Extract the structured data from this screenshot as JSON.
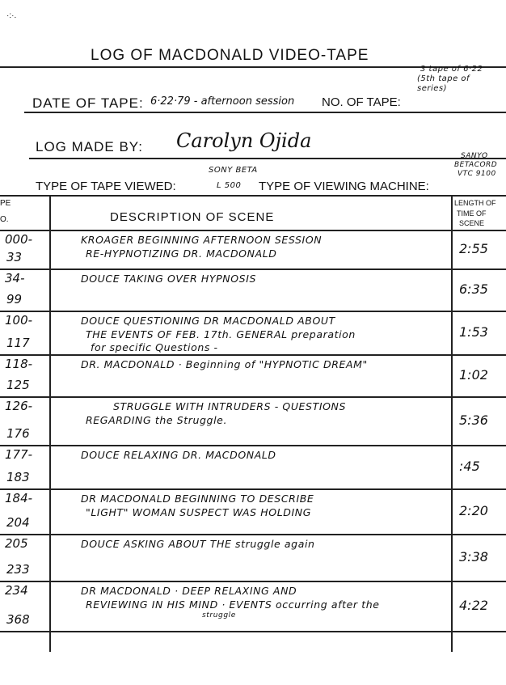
{
  "title": "LOG OF MACDONALD VIDEO-TAPE",
  "date_label": "DATE OF TAPE:",
  "date_value": "6·22·79 - afternoon session",
  "tape_no_label": "NO. OF TAPE:",
  "tape_no_value_line1": "3 tape of 6·22",
  "tape_no_value_line2": "(5th tape of",
  "tape_no_value_line3": "series)",
  "log_by_label": "LOG MADE BY:",
  "log_by_value": "Carolyn Ojida",
  "tape_type_label": "TYPE OF TAPE VIEWED:",
  "tape_type_value_line1": "SONY BETA",
  "tape_type_value_line2": "L 500",
  "machine_label": "TYPE OF VIEWING MACHINE:",
  "machine_value_line1": "SANYO",
  "machine_value_line2": "BETACORD",
  "machine_value_line3": "VTC 9100",
  "table": {
    "col_tape_no_line1": "PE",
    "col_tape_no_line2": "O.",
    "col_description": "DESCRIPTION OF SCENE",
    "col_length_line1": "LENGTH OF",
    "col_length_line2": "TIME OF",
    "col_length_line3": "SCENE",
    "rows": [
      {
        "start": "000-",
        "end": "33",
        "desc1": "KROAGER BEGINNING AFTERNOON SESSION",
        "desc2": "RE-HYPNOTIZING DR. MACDONALD",
        "desc3": "",
        "length": "2:55"
      },
      {
        "start": "34-",
        "end": "99",
        "desc1": "DOUCE TAKING OVER HYPNOSIS",
        "desc2": "",
        "desc3": "",
        "length": "6:35"
      },
      {
        "start": "100-",
        "end": "117",
        "desc1": "DOUCE QUESTIONING DR MACDONALD ABOUT",
        "desc2": "THE EVENTS OF FEB. 17th. GENERAL preparation",
        "desc3": "for specific Questions -",
        "length": "1:53"
      },
      {
        "start": "118-",
        "end": "125",
        "desc1": "DR. MACDONALD · Beginning of \"HYPNOTIC DREAM\"",
        "desc2": "",
        "desc3": "",
        "length": "1:02"
      },
      {
        "start": "126-",
        "end": "176",
        "desc1": "STRUGGLE WITH INTRUDERS - QUESTIONS",
        "desc2": "REGARDING the Struggle.",
        "desc3": "",
        "length": "5:36"
      },
      {
        "start": "177-",
        "end": "183",
        "desc1": "DOUCE RELAXING DR. MACDONALD",
        "desc2": "",
        "desc3": "",
        "length": ":45"
      },
      {
        "start": "184-",
        "end": "204",
        "desc1": "DR MACDONALD BEGINNING TO DESCRIBE",
        "desc2": "\"LIGHT\" WOMAN SUSPECT WAS HOLDING",
        "desc3": "",
        "length": "2:20"
      },
      {
        "start": "205",
        "end": "233",
        "desc1": "DOUCE ASKING ABOUT THE struggle again",
        "desc2": "",
        "desc3": "",
        "length": "3:38"
      },
      {
        "start": "234",
        "end": "368",
        "desc1": "DR MACDONALD · DEEP RELAXING AND",
        "desc2": "REVIEWING IN HIS MIND · EVENTS occurring after the",
        "desc3": "struggle",
        "length": "4:22"
      }
    ]
  }
}
